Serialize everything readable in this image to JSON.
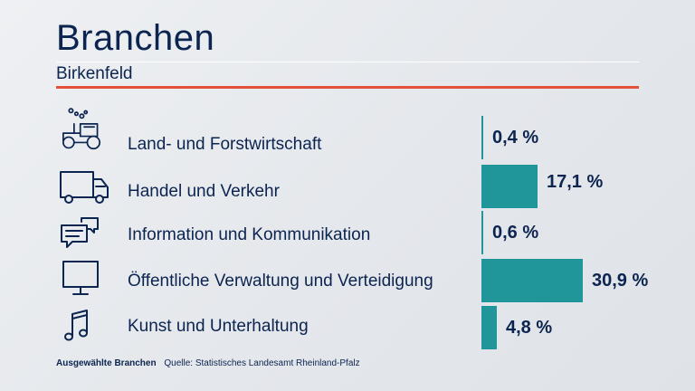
{
  "title": "Branchen",
  "subtitle": "Birkenfeld",
  "colors": {
    "bar": "#20969b",
    "accent_line": "#e4513b",
    "text": "#0c2450"
  },
  "chart_data": {
    "type": "bar",
    "orientation": "horizontal",
    "title": "Branchen",
    "subtitle": "Birkenfeld",
    "unit": "%",
    "categories": [
      "Land- und Forstwirtschaft",
      "Handel und Verkehr",
      "Information und Kommunikation",
      "Öffentliche Verwaltung und Verteidigung",
      "Kunst und Unterhaltung"
    ],
    "values": [
      0.4,
      17.1,
      0.6,
      30.9,
      4.8
    ],
    "value_labels": [
      "0,4 %",
      "17,1 %",
      "0,6 %",
      "30,9 %",
      "4,8 %"
    ],
    "icons": [
      "tractor-icon",
      "truck-icon",
      "chat-bubbles-icon",
      "monitor-icon",
      "music-note-icon"
    ],
    "xlim": [
      0,
      30.9
    ],
    "grid": false,
    "legend": "none"
  },
  "footer": {
    "label": "Ausgewählte Branchen",
    "source": "Quelle: Statistisches Landesamt Rheinland-Pfalz"
  }
}
